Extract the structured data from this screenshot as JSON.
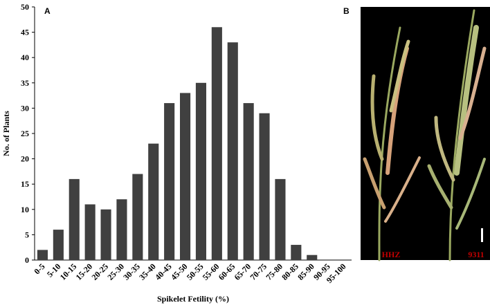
{
  "chart_data": {
    "type": "bar",
    "panel_label": "A",
    "xlabel": "Spikelet Fetility (%)",
    "ylabel": "No. of Plants",
    "categories": [
      "0-5",
      "5-10",
      "10-15",
      "15-20",
      "20-25",
      "25-30",
      "30-35",
      "35-40",
      "40-45",
      "45-50",
      "50-55",
      "55-60",
      "60-65",
      "65-70",
      "70-75",
      "75-80",
      "80-85",
      "85-90",
      "90-95",
      "95-100"
    ],
    "values": [
      2,
      6,
      16,
      11,
      10,
      12,
      17,
      23,
      31,
      33,
      35,
      46,
      43,
      31,
      29,
      16,
      3,
      1,
      0,
      0
    ],
    "color": "#404040",
    "ylim": [
      0,
      50
    ],
    "yticks": [
      0,
      5,
      10,
      15,
      20,
      25,
      30,
      35,
      40,
      45,
      50
    ],
    "grid": false
  },
  "photo": {
    "panel_label": "B",
    "labels": [
      "HHZ",
      "9311"
    ]
  }
}
